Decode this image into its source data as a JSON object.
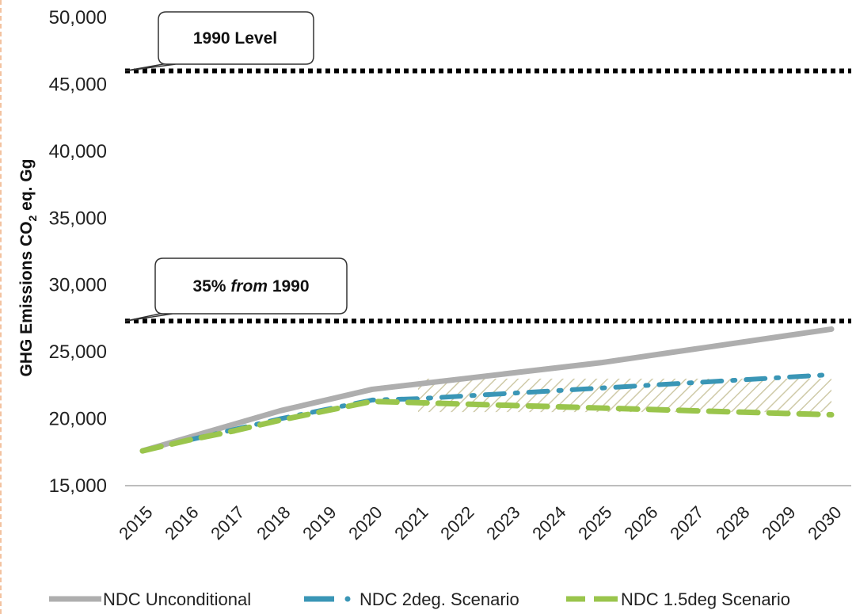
{
  "colors": {
    "unconditional": "#aeaeae",
    "scenario_2deg": "#3a96b6",
    "scenario_15deg": "#9ac54c",
    "reference_line": "#000000",
    "hatch": "#cfcaa8"
  },
  "chart_data": {
    "type": "line",
    "x": [
      "2015",
      "2016",
      "2017",
      "2018",
      "2019",
      "2020",
      "2021",
      "2022",
      "2023",
      "2024",
      "2025",
      "2026",
      "2027",
      "2028",
      "2029",
      "2030"
    ],
    "ylabel_main": "GHG  Emissions CO",
    "ylabel_sub": "2",
    "ylabel_tail": " eq. Gg",
    "ylim": [
      15000,
      50000
    ],
    "yticks": [
      "15,000",
      "20,000",
      "25,000",
      "30,000",
      "35,000",
      "40,000",
      "45,000",
      "50,000"
    ],
    "ytick_values": [
      15000,
      20000,
      25000,
      30000,
      35000,
      40000,
      45000,
      50000
    ],
    "grid": false,
    "legend_position": "bottom",
    "series": [
      {
        "name": "NDC Unconditional",
        "style": "solid",
        "values": [
          17600,
          18600,
          19600,
          20600,
          21400,
          22200,
          22600,
          23000,
          23400,
          23800,
          24200,
          24700,
          25200,
          25700,
          26200,
          26700
        ]
      },
      {
        "name": "NDC 2deg. Scenario",
        "style": "dashdot",
        "values": [
          17600,
          18400,
          19200,
          20000,
          20700,
          21400,
          21500,
          21700,
          21900,
          22100,
          22300,
          22500,
          22700,
          22900,
          23100,
          23300
        ]
      },
      {
        "name": "NDC 1.5deg Scenario",
        "style": "dashed",
        "values": [
          17600,
          18400,
          19100,
          19900,
          20600,
          21300,
          21200,
          21100,
          21000,
          20900,
          20800,
          20700,
          20600,
          20500,
          20400,
          20300
        ]
      }
    ],
    "reference_lines": [
      {
        "label": "1990 Level",
        "value": 46000
      },
      {
        "label_pre": "35% ",
        "label_italic": "from",
        "label_post": " 1990",
        "value": 27300
      }
    ],
    "hatched_band": {
      "x_from": "2021",
      "x_to": "2030",
      "upper": 23000,
      "lower": 20500
    }
  }
}
